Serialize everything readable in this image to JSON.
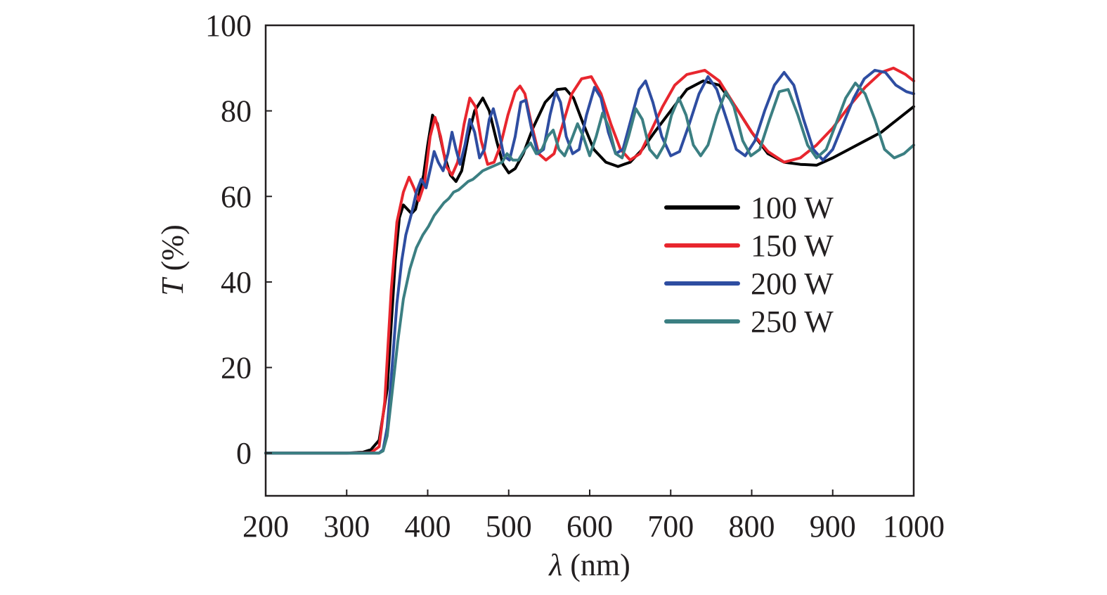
{
  "chart_data": {
    "type": "line",
    "xlabel": {
      "symbol": "λ",
      "unit": " (nm)"
    },
    "ylabel": {
      "symbol": "T",
      "unit": " (%)"
    },
    "xlim": [
      200,
      1000
    ],
    "ylim": [
      -10,
      100
    ],
    "xticks": [
      200,
      300,
      400,
      500,
      600,
      700,
      800,
      900,
      1000
    ],
    "yticks": [
      0,
      20,
      40,
      60,
      80,
      100
    ],
    "xtick_labels": [
      "200",
      "300",
      "400",
      "500",
      "600",
      "700",
      "800",
      "900",
      "1000"
    ],
    "ytick_labels": [
      "0",
      "20",
      "40",
      "60",
      "80",
      "100"
    ],
    "grid": false,
    "legend_position": "right",
    "series": [
      {
        "name": "100 W",
        "color": "#000000",
        "points": [
          [
            200,
            0
          ],
          [
            300,
            0
          ],
          [
            320,
            0.2
          ],
          [
            330,
            0.8
          ],
          [
            340,
            3
          ],
          [
            350,
            15
          ],
          [
            355,
            30
          ],
          [
            360,
            45
          ],
          [
            365,
            55
          ],
          [
            370,
            58
          ],
          [
            375,
            57
          ],
          [
            380,
            56
          ],
          [
            385,
            57
          ],
          [
            390,
            61
          ],
          [
            395,
            65
          ],
          [
            400,
            72
          ],
          [
            406,
            79
          ],
          [
            412,
            77
          ],
          [
            420,
            70
          ],
          [
            428,
            65
          ],
          [
            435,
            63.5
          ],
          [
            442,
            66
          ],
          [
            450,
            74
          ],
          [
            458,
            80
          ],
          [
            468,
            83
          ],
          [
            476,
            80
          ],
          [
            485,
            73
          ],
          [
            493,
            67.5
          ],
          [
            500,
            65.5
          ],
          [
            508,
            66.5
          ],
          [
            518,
            70
          ],
          [
            530,
            76
          ],
          [
            545,
            82
          ],
          [
            560,
            85
          ],
          [
            570,
            85.2
          ],
          [
            580,
            83
          ],
          [
            592,
            77
          ],
          [
            605,
            71
          ],
          [
            620,
            68
          ],
          [
            635,
            67
          ],
          [
            650,
            68
          ],
          [
            665,
            71
          ],
          [
            680,
            75
          ],
          [
            700,
            80
          ],
          [
            720,
            85
          ],
          [
            740,
            87
          ],
          [
            760,
            86
          ],
          [
            780,
            81
          ],
          [
            800,
            75
          ],
          [
            820,
            70
          ],
          [
            840,
            68
          ],
          [
            860,
            67.5
          ],
          [
            880,
            67.3
          ],
          [
            900,
            69
          ],
          [
            920,
            71
          ],
          [
            940,
            73
          ],
          [
            960,
            75
          ],
          [
            980,
            78
          ],
          [
            1000,
            81
          ]
        ]
      },
      {
        "name": "150 W",
        "color": "#e8262e",
        "points": [
          [
            200,
            0
          ],
          [
            300,
            0
          ],
          [
            330,
            0.1
          ],
          [
            340,
            1.5
          ],
          [
            347,
            12
          ],
          [
            355,
            38
          ],
          [
            362,
            54
          ],
          [
            370,
            61
          ],
          [
            377,
            64.5
          ],
          [
            383,
            62
          ],
          [
            389,
            59
          ],
          [
            396,
            63
          ],
          [
            403,
            74
          ],
          [
            409,
            78.5
          ],
          [
            416,
            74
          ],
          [
            423,
            67
          ],
          [
            430,
            65
          ],
          [
            437,
            68
          ],
          [
            445,
            77
          ],
          [
            452,
            83
          ],
          [
            459,
            81
          ],
          [
            466,
            73
          ],
          [
            474,
            67.5
          ],
          [
            482,
            68
          ],
          [
            490,
            72
          ],
          [
            499,
            79
          ],
          [
            508,
            84.5
          ],
          [
            514,
            85.8
          ],
          [
            520,
            84
          ],
          [
            528,
            77
          ],
          [
            537,
            70
          ],
          [
            546,
            68.5
          ],
          [
            556,
            70
          ],
          [
            567,
            77
          ],
          [
            578,
            84
          ],
          [
            590,
            87.5
          ],
          [
            602,
            88
          ],
          [
            614,
            84
          ],
          [
            626,
            77
          ],
          [
            638,
            71
          ],
          [
            650,
            68.5
          ],
          [
            662,
            70
          ],
          [
            675,
            75
          ],
          [
            690,
            81
          ],
          [
            705,
            86
          ],
          [
            720,
            88.5
          ],
          [
            742,
            89.5
          ],
          [
            760,
            87
          ],
          [
            780,
            81
          ],
          [
            800,
            75
          ],
          [
            820,
            70.5
          ],
          [
            840,
            68
          ],
          [
            860,
            69
          ],
          [
            880,
            72
          ],
          [
            900,
            76
          ],
          [
            920,
            81
          ],
          [
            940,
            85.5
          ],
          [
            960,
            89
          ],
          [
            975,
            90
          ],
          [
            990,
            88.5
          ],
          [
            1000,
            87
          ]
        ]
      },
      {
        "name": "200 W",
        "color": "#2e4da1",
        "points": [
          [
            200,
            0
          ],
          [
            300,
            0
          ],
          [
            340,
            0
          ],
          [
            345,
            0.8
          ],
          [
            350,
            6
          ],
          [
            356,
            20
          ],
          [
            362,
            35
          ],
          [
            368,
            45
          ],
          [
            373,
            51
          ],
          [
            380,
            56
          ],
          [
            386,
            61
          ],
          [
            392,
            64
          ],
          [
            398,
            62
          ],
          [
            404,
            67
          ],
          [
            408,
            70.5
          ],
          [
            413,
            68
          ],
          [
            419,
            66
          ],
          [
            425,
            70
          ],
          [
            430,
            75
          ],
          [
            435,
            71
          ],
          [
            440,
            67.5
          ],
          [
            446,
            72
          ],
          [
            452,
            78
          ],
          [
            458,
            75
          ],
          [
            464,
            69
          ],
          [
            470,
            71
          ],
          [
            476,
            78
          ],
          [
            481,
            80.5
          ],
          [
            487,
            76
          ],
          [
            494,
            69.5
          ],
          [
            501,
            68.5
          ],
          [
            508,
            74
          ],
          [
            515,
            82
          ],
          [
            521,
            82.5
          ],
          [
            528,
            76
          ],
          [
            536,
            70
          ],
          [
            543,
            71
          ],
          [
            551,
            79
          ],
          [
            558,
            84.5
          ],
          [
            564,
            82
          ],
          [
            571,
            74
          ],
          [
            579,
            70
          ],
          [
            587,
            71
          ],
          [
            596,
            79
          ],
          [
            606,
            85.5
          ],
          [
            614,
            83
          ],
          [
            623,
            75
          ],
          [
            632,
            70
          ],
          [
            641,
            71
          ],
          [
            651,
            78
          ],
          [
            661,
            85
          ],
          [
            669,
            87
          ],
          [
            678,
            82
          ],
          [
            689,
            74
          ],
          [
            700,
            69.5
          ],
          [
            711,
            70.5
          ],
          [
            723,
            77
          ],
          [
            735,
            84
          ],
          [
            746,
            88
          ],
          [
            757,
            85
          ],
          [
            769,
            78
          ],
          [
            781,
            71
          ],
          [
            792,
            69.5
          ],
          [
            804,
            73
          ],
          [
            816,
            80
          ],
          [
            828,
            86
          ],
          [
            840,
            89
          ],
          [
            852,
            86
          ],
          [
            864,
            78
          ],
          [
            876,
            71
          ],
          [
            888,
            68.5
          ],
          [
            900,
            71
          ],
          [
            913,
            77
          ],
          [
            926,
            83
          ],
          [
            939,
            87.5
          ],
          [
            952,
            89.5
          ],
          [
            965,
            89
          ],
          [
            978,
            86
          ],
          [
            991,
            84.5
          ],
          [
            1000,
            84
          ]
        ]
      },
      {
        "name": "250 W",
        "color": "#3b7f82",
        "points": [
          [
            200,
            0
          ],
          [
            300,
            0
          ],
          [
            340,
            0
          ],
          [
            345,
            0.5
          ],
          [
            350,
            4
          ],
          [
            356,
            14
          ],
          [
            363,
            26
          ],
          [
            370,
            36
          ],
          [
            378,
            43
          ],
          [
            386,
            48
          ],
          [
            394,
            51
          ],
          [
            401,
            53
          ],
          [
            408,
            55.5
          ],
          [
            414,
            57
          ],
          [
            420,
            58.5
          ],
          [
            426,
            59.5
          ],
          [
            432,
            61
          ],
          [
            438,
            61.5
          ],
          [
            444,
            62.5
          ],
          [
            450,
            63.5
          ],
          [
            456,
            64
          ],
          [
            462,
            65
          ],
          [
            468,
            66
          ],
          [
            474,
            66.5
          ],
          [
            480,
            67
          ],
          [
            486,
            67.5
          ],
          [
            492,
            68
          ],
          [
            498,
            70
          ],
          [
            505,
            68.5
          ],
          [
            512,
            68.5
          ],
          [
            520,
            71
          ],
          [
            527,
            72.5
          ],
          [
            534,
            70
          ],
          [
            541,
            71
          ],
          [
            548,
            74
          ],
          [
            555,
            75.5
          ],
          [
            562,
            71
          ],
          [
            569,
            69.5
          ],
          [
            577,
            73
          ],
          [
            585,
            77
          ],
          [
            592,
            74
          ],
          [
            600,
            69.5
          ],
          [
            608,
            74
          ],
          [
            616,
            79.5
          ],
          [
            624,
            76
          ],
          [
            632,
            70
          ],
          [
            640,
            69
          ],
          [
            648,
            74
          ],
          [
            657,
            80.5
          ],
          [
            665,
            78
          ],
          [
            674,
            71
          ],
          [
            683,
            69
          ],
          [
            692,
            72
          ],
          [
            701,
            79
          ],
          [
            710,
            83
          ],
          [
            719,
            79
          ],
          [
            728,
            72
          ],
          [
            737,
            69.5
          ],
          [
            746,
            72
          ],
          [
            757,
            79
          ],
          [
            768,
            84.5
          ],
          [
            778,
            81
          ],
          [
            789,
            73
          ],
          [
            799,
            69.5
          ],
          [
            810,
            71
          ],
          [
            822,
            78
          ],
          [
            834,
            84.5
          ],
          [
            845,
            85
          ],
          [
            857,
            79
          ],
          [
            869,
            72
          ],
          [
            880,
            69
          ],
          [
            892,
            71
          ],
          [
            904,
            77
          ],
          [
            916,
            83
          ],
          [
            928,
            86.5
          ],
          [
            940,
            84
          ],
          [
            952,
            78
          ],
          [
            964,
            71
          ],
          [
            976,
            69
          ],
          [
            988,
            70
          ],
          [
            1000,
            72
          ]
        ]
      }
    ]
  }
}
